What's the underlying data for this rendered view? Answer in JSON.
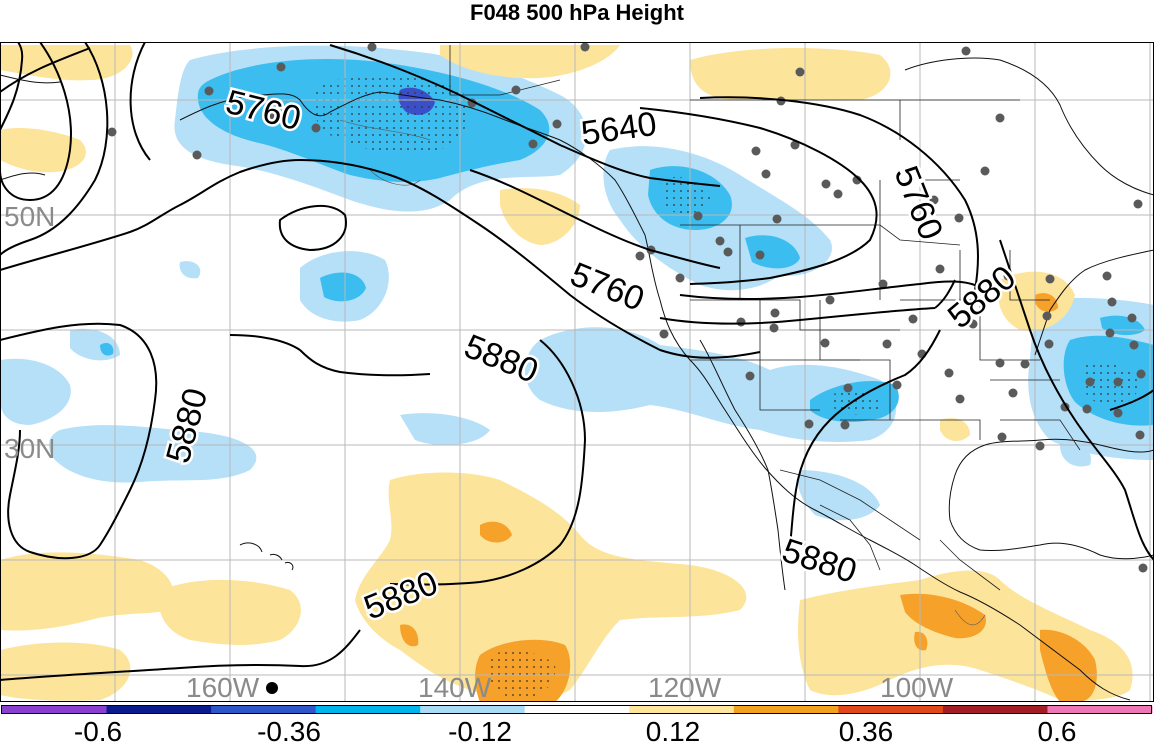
{
  "title": "F048 500 hPa Height",
  "latitude_labels": [
    "50N",
    "30N"
  ],
  "longitude_labels": [
    "160W",
    "140W",
    "120W",
    "100W"
  ],
  "contour_labels": [
    "5760",
    "5640",
    "5760",
    "5760",
    "5880",
    "5880",
    "5880",
    "5880",
    "5880"
  ],
  "colorbar": {
    "tick_labels": [
      "-0.6",
      "-0.36",
      "-0.12",
      "0.12",
      "0.36",
      "0.6"
    ],
    "colors": [
      "#8a3fd0",
      "#0b1a8c",
      "#2d57c9",
      "#00b4ee",
      "#a9dcf7",
      "#ffffff",
      "#ffe69a",
      "#f3a21b",
      "#e2481a",
      "#a31d24",
      "#ee77b5"
    ]
  },
  "colors": {
    "light_blue": "#b5e0f8",
    "mid_blue": "#3bbdf0",
    "dark_blue": "#3b4fc9",
    "light_yellow": "#fde49b",
    "orange": "#f6a12a",
    "grid": "#b9b9b9",
    "station_dot": "#5a5a5a"
  }
}
